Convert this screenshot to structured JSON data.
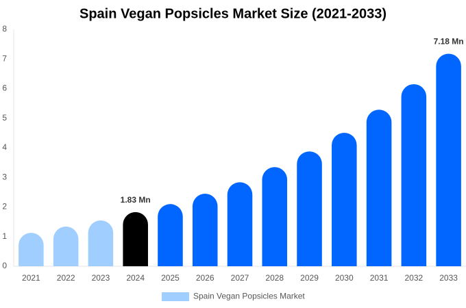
{
  "chart_data": {
    "type": "bar",
    "title": "Spain Vegan Popsicles Market Size (2021-2033)",
    "categories": [
      "2021",
      "2022",
      "2023",
      "2024",
      "2025",
      "2026",
      "2027",
      "2028",
      "2029",
      "2030",
      "2031",
      "2032",
      "2033"
    ],
    "series": [
      {
        "name": "Spain Vegan Popsicles Market",
        "color": "#a0cfff",
        "values": [
          1.13,
          1.34,
          1.55,
          1.83,
          2.1,
          2.45,
          2.84,
          3.35,
          3.88,
          4.51,
          5.29,
          6.15,
          7.18
        ],
        "value_labels": [
          null,
          null,
          null,
          "1.83 Mn",
          null,
          null,
          null,
          null,
          null,
          null,
          null,
          null,
          "7.18 Mn"
        ],
        "colors": [
          "#a0cfff",
          "#a0cfff",
          "#a0cfff",
          "#000000",
          "#0066ff",
          "#0066ff",
          "#0066ff",
          "#0066ff",
          "#0066ff",
          "#0066ff",
          "#0066ff",
          "#0066ff",
          "#0066ff"
        ]
      }
    ],
    "ylim": [
      0,
      8
    ],
    "yticks": [
      0,
      1,
      2,
      3,
      4,
      5,
      6,
      7,
      8
    ],
    "grid": false
  }
}
